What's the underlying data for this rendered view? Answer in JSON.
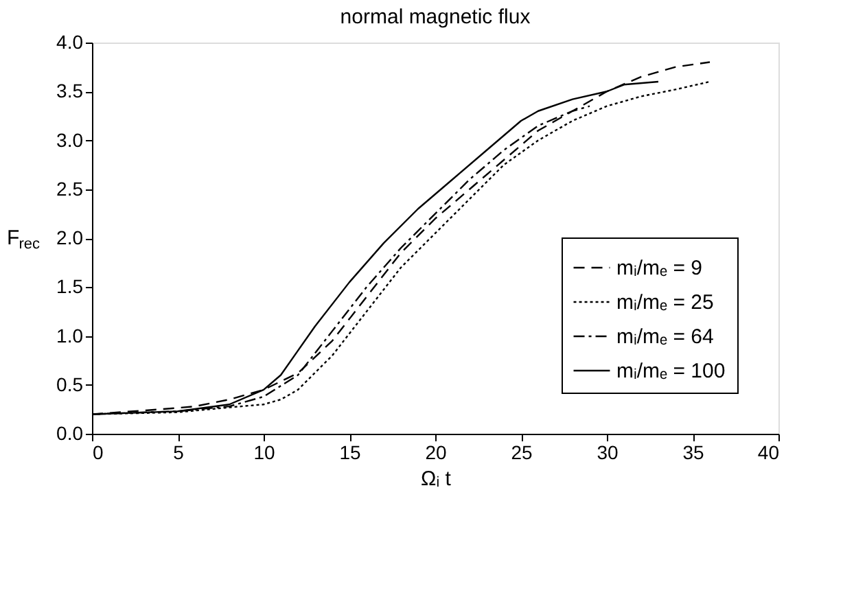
{
  "chart_data": {
    "type": "line",
    "title": "normal magnetic flux",
    "xlabel": "Ωᵢ t",
    "ylabel": "F$_{rec}$",
    "xlim": [
      0,
      40
    ],
    "xticks": [
      0,
      5,
      10,
      15,
      20,
      25,
      30,
      35,
      40
    ],
    "ylim": [
      0,
      4
    ],
    "yticks": [
      {
        "value": 0,
        "label": "0.0"
      },
      0.5,
      {
        "value": 1,
        "label": "1.0"
      },
      1.5,
      {
        "value": 2,
        "label": "2.0"
      },
      2.5,
      {
        "value": 3,
        "label": "3.0"
      },
      3.5,
      {
        "value": 4,
        "label": "4.0"
      }
    ],
    "grid": false,
    "legend": "bottom right",
    "marker": "none",
    "series": [
      {
        "name": "mᵢ/mₑ = 9",
        "color": "#000000",
        "line_style": "dashed",
        "x": [
          0,
          4,
          6,
          8,
          10,
          12,
          14,
          16,
          18,
          20,
          22,
          24,
          26,
          28,
          29,
          30,
          32,
          34,
          36
        ],
        "values": [
          0.2,
          0.25,
          0.28,
          0.35,
          0.45,
          0.62,
          0.95,
          1.4,
          1.85,
          2.2,
          2.5,
          2.8,
          3.1,
          3.3,
          3.4,
          3.5,
          3.65,
          3.75,
          3.8
        ]
      },
      {
        "name": "mᵢ/mₑ = 25",
        "color": "#000000",
        "line_style": "dotted",
        "x": [
          0,
          5,
          8,
          10,
          11,
          12,
          14,
          16,
          18,
          20,
          22,
          24,
          26,
          28,
          30,
          32,
          34,
          36
        ],
        "values": [
          0.2,
          0.22,
          0.27,
          0.3,
          0.35,
          0.45,
          0.8,
          1.25,
          1.7,
          2.05,
          2.4,
          2.75,
          3.0,
          3.2,
          3.35,
          3.45,
          3.52,
          3.6
        ]
      },
      {
        "name": "mᵢ/mₑ = 64",
        "color": "#000000",
        "line_style": "dashdot",
        "x": [
          0,
          5,
          8,
          10,
          12,
          14,
          16,
          18,
          20,
          22,
          24,
          26,
          28,
          29
        ],
        "values": [
          0.2,
          0.23,
          0.28,
          0.38,
          0.6,
          1.05,
          1.5,
          1.9,
          2.25,
          2.6,
          2.9,
          3.15,
          3.3,
          3.35
        ]
      },
      {
        "name": "mᵢ/mₑ = 100",
        "color": "#000000",
        "line_style": "solid",
        "x": [
          0,
          5,
          8,
          10,
          11,
          12,
          13,
          15,
          17,
          19,
          21,
          23,
          25,
          26,
          28,
          30,
          31,
          33
        ],
        "values": [
          0.2,
          0.23,
          0.3,
          0.45,
          0.6,
          0.85,
          1.1,
          1.55,
          1.95,
          2.3,
          2.6,
          2.9,
          3.2,
          3.3,
          3.42,
          3.5,
          3.57,
          3.6
        ]
      }
    ]
  }
}
